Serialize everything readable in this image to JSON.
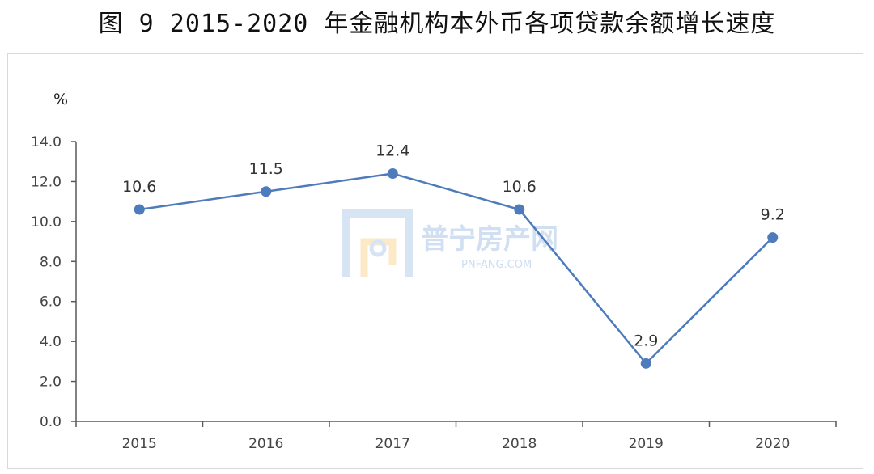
{
  "figure": {
    "title": "图 9    2015-2020 年金融机构本外币各项贷款余额增长速度"
  },
  "watermark": {
    "name": "普宁房产网",
    "domain": "PNFANG.COM"
  },
  "chart_data": {
    "type": "line",
    "categories": [
      "2015",
      "2016",
      "2017",
      "2018",
      "2019",
      "2020"
    ],
    "series": [
      {
        "values": [
          10.6,
          11.5,
          12.4,
          10.6,
          2.9,
          9.2
        ],
        "color": "#4e7bbb"
      }
    ],
    "data_labels": [
      "10.6",
      "11.5",
      "12.4",
      "10.6",
      "2.9",
      "9.2"
    ],
    "ylabel": "%",
    "ylim": [
      0,
      14
    ],
    "yticks": [
      "0.0",
      "2.0",
      "4.0",
      "6.0",
      "8.0",
      "10.0",
      "12.0",
      "14.0"
    ],
    "grid": false,
    "legend": "none"
  }
}
